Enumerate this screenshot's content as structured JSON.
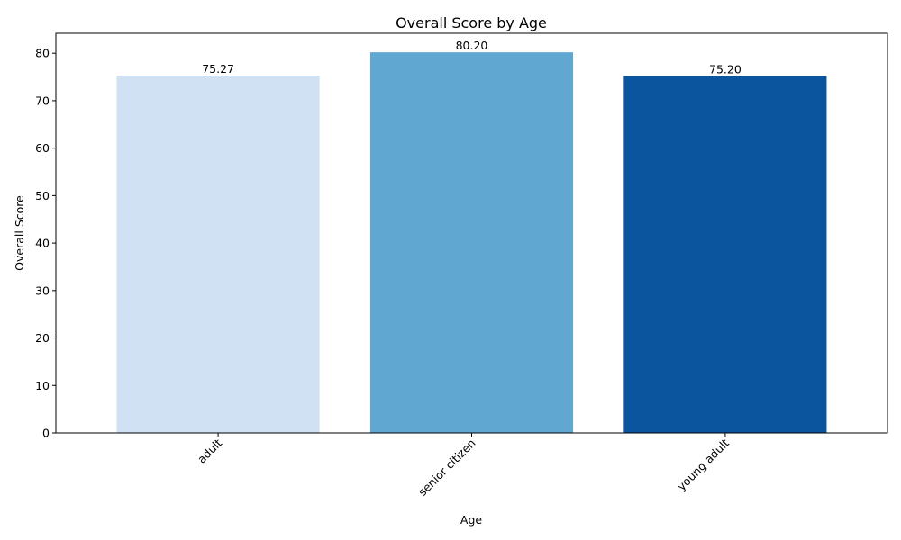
{
  "chart_data": {
    "type": "bar",
    "title": "Overall Score by Age",
    "xlabel": "Age",
    "ylabel": "Overall Score",
    "categories": [
      "adult",
      "senior citizen",
      "young adult"
    ],
    "values": [
      75.27,
      80.2,
      75.2
    ],
    "value_labels": [
      "75.27",
      "80.20",
      "75.20"
    ],
    "bar_colors": [
      "#cfe1f2",
      "#60a7d2",
      "#0b559f"
    ],
    "ylim": [
      0,
      84.21
    ],
    "yticks": [
      0,
      10,
      20,
      30,
      40,
      50,
      60,
      70,
      80
    ],
    "xtick_rotation": 45,
    "grid": false,
    "legend": false
  }
}
